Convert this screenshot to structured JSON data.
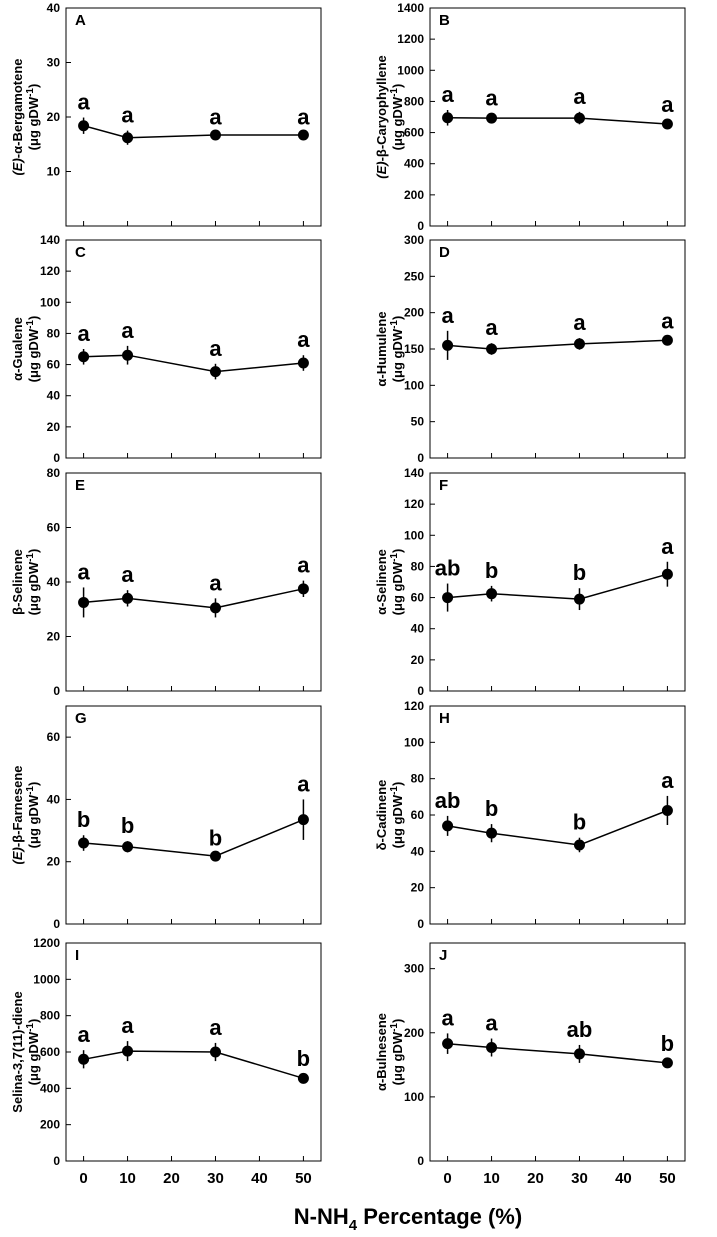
{
  "figure": {
    "xlabel_main": "N-NH",
    "xlabel_sub": "4",
    "xlabel_tail": " Percentage (%)",
    "unit_prefix": "(μg gDW",
    "unit_sup": "-1",
    "unit_suffix": ")"
  },
  "chart_data": [
    {
      "panel": "A",
      "type": "line",
      "ylabel_italic": "(E)",
      "ylabel_rest": "-α-Bergamotene",
      "ylim": [
        0,
        40
      ],
      "yticks": [
        10,
        20,
        30,
        40
      ],
      "x": [
        0,
        10,
        30,
        50
      ],
      "values": [
        18.4,
        16.2,
        16.7,
        16.7
      ],
      "errors": [
        1.5,
        1.3,
        0.5,
        0.5
      ],
      "letters": [
        "a",
        "a",
        "a",
        "a"
      ],
      "show_xticks": false
    },
    {
      "panel": "B",
      "type": "line",
      "ylabel_italic": "(E)",
      "ylabel_rest": "-β-Caryophyllene",
      "ylim": [
        0,
        1400
      ],
      "yticks": [
        0,
        200,
        400,
        600,
        800,
        1000,
        1200,
        1400
      ],
      "x": [
        0,
        10,
        30,
        50
      ],
      "values": [
        695,
        693,
        693,
        655
      ],
      "errors": [
        50,
        30,
        40,
        25
      ],
      "letters": [
        "a",
        "a",
        "a",
        "a"
      ],
      "show_xticks": false
    },
    {
      "panel": "C",
      "type": "line",
      "ylabel_italic": "",
      "ylabel_rest": "α-Gualene",
      "ylim": [
        0,
        140
      ],
      "yticks": [
        0,
        20,
        40,
        60,
        80,
        100,
        120,
        140
      ],
      "x": [
        0,
        10,
        30,
        50
      ],
      "values": [
        65,
        66,
        55.5,
        61
      ],
      "errors": [
        5,
        6,
        5,
        5
      ],
      "letters": [
        "a",
        "a",
        "a",
        "a"
      ],
      "show_xticks": false
    },
    {
      "panel": "D",
      "type": "line",
      "ylabel_italic": "",
      "ylabel_rest": "α-Humulene",
      "ylim": [
        0,
        300
      ],
      "yticks": [
        0,
        50,
        100,
        150,
        200,
        250,
        300
      ],
      "x": [
        0,
        10,
        30,
        50
      ],
      "values": [
        155,
        150,
        157,
        162
      ],
      "errors": [
        20,
        8,
        8,
        5
      ],
      "letters": [
        "a",
        "a",
        "a",
        "a"
      ],
      "show_xticks": false
    },
    {
      "panel": "E",
      "type": "line",
      "ylabel_italic": "",
      "ylabel_rest": "β-Selinene",
      "ylim": [
        0,
        80
      ],
      "yticks": [
        0,
        20,
        40,
        60,
        80
      ],
      "x": [
        0,
        10,
        30,
        50
      ],
      "values": [
        32.5,
        34,
        30.5,
        37.5
      ],
      "errors": [
        5.5,
        3,
        3.5,
        3
      ],
      "letters": [
        "a",
        "a",
        "a",
        "a"
      ],
      "show_xticks": false
    },
    {
      "panel": "F",
      "type": "line",
      "ylabel_italic": "",
      "ylabel_rest": "α-Selinene",
      "ylim": [
        0,
        140
      ],
      "yticks": [
        0,
        20,
        40,
        60,
        80,
        100,
        120,
        140
      ],
      "x": [
        0,
        10,
        30,
        50
      ],
      "values": [
        60,
        62.5,
        59,
        75
      ],
      "errors": [
        9,
        5,
        7,
        8
      ],
      "letters": [
        "ab",
        "b",
        "b",
        "a"
      ],
      "show_xticks": false
    },
    {
      "panel": "G",
      "type": "line",
      "ylabel_italic": "(E)",
      "ylabel_rest": "-β-Farnesene",
      "ylim": [
        0,
        70
      ],
      "yticks": [
        0,
        20,
        40,
        60
      ],
      "x": [
        0,
        10,
        30,
        50
      ],
      "values": [
        26,
        24.8,
        21.8,
        33.5
      ],
      "errors": [
        2.5,
        1.8,
        0.8,
        6.5
      ],
      "letters": [
        "b",
        "b",
        "b",
        "a"
      ],
      "show_xticks": false
    },
    {
      "panel": "H",
      "type": "line",
      "ylabel_italic": "",
      "ylabel_rest": "δ-Cadinene",
      "ylim": [
        0,
        120
      ],
      "yticks": [
        0,
        20,
        40,
        60,
        80,
        100,
        120
      ],
      "x": [
        0,
        10,
        30,
        50
      ],
      "values": [
        54,
        50,
        43.5,
        62.5
      ],
      "errors": [
        5.5,
        5,
        4,
        8
      ],
      "letters": [
        "ab",
        "b",
        "b",
        "a"
      ],
      "show_xticks": false
    },
    {
      "panel": "I",
      "type": "line",
      "ylabel_italic": "",
      "ylabel_rest": "Selina-3,7(11)-diene",
      "ylim": [
        0,
        1200
      ],
      "yticks": [
        0,
        200,
        400,
        600,
        800,
        1000,
        1200
      ],
      "x": [
        0,
        10,
        30,
        50
      ],
      "values": [
        560,
        605,
        600,
        455
      ],
      "errors": [
        50,
        55,
        50,
        25
      ],
      "letters": [
        "a",
        "a",
        "a",
        "b"
      ],
      "show_xticks": true
    },
    {
      "panel": "J",
      "type": "line",
      "ylabel_italic": "",
      "ylabel_rest": "α-Bulnesene",
      "ylim": [
        0,
        340
      ],
      "yticks": [
        0,
        100,
        200,
        300
      ],
      "x": [
        0,
        10,
        30,
        50
      ],
      "values": [
        183,
        177,
        167,
        153
      ],
      "errors": [
        16,
        14,
        14,
        6
      ],
      "letters": [
        "a",
        "a",
        "ab",
        "b"
      ],
      "show_xticks": true
    }
  ],
  "xaxis": {
    "ticks": [
      0,
      10,
      20,
      30,
      40,
      50
    ],
    "xlim": [
      -4,
      54
    ]
  }
}
